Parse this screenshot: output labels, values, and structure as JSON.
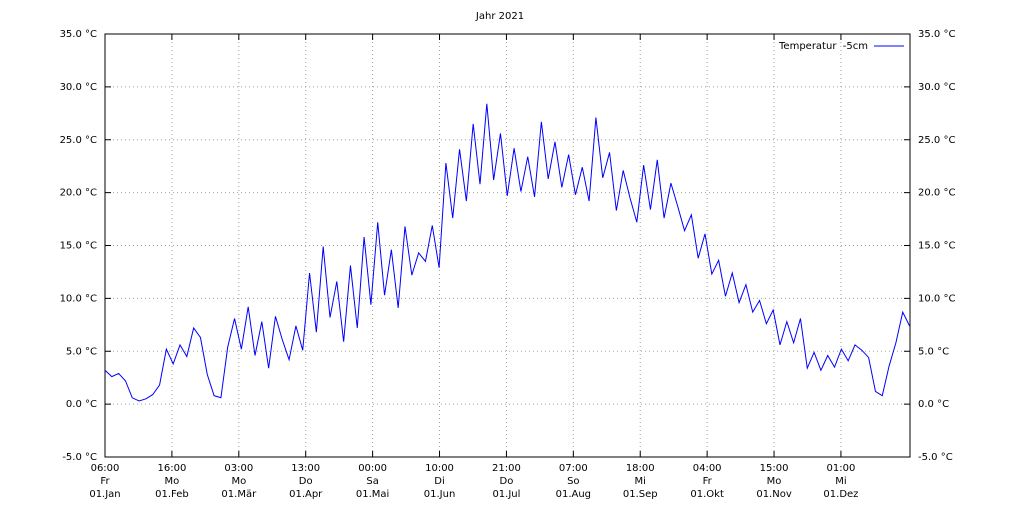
{
  "chart_data": {
    "type": "line",
    "title": "Jahr 2021",
    "xlim": [
      0,
      354.2
    ],
    "xticks": [
      {
        "value": 0,
        "label": [
          "06:00",
          "Fr",
          "01.Jan"
        ]
      },
      {
        "value": 29.44,
        "label": [
          "16:00",
          "Mo",
          "01.Feb"
        ]
      },
      {
        "value": 58.88,
        "label": [
          "03:00",
          "Mo",
          "01.Mär"
        ]
      },
      {
        "value": 88.31,
        "label": [
          "13:00",
          "Do",
          "01.Apr"
        ]
      },
      {
        "value": 117.75,
        "label": [
          "00:00",
          "Sa",
          "01.Mai"
        ]
      },
      {
        "value": 147.19,
        "label": [
          "10:00",
          "Di",
          "01.Jun"
        ]
      },
      {
        "value": 176.63,
        "label": [
          "21:00",
          "Do",
          "01.Jul"
        ]
      },
      {
        "value": 206.06,
        "label": [
          "07:00",
          "So",
          "01.Aug"
        ]
      },
      {
        "value": 235.5,
        "label": [
          "18:00",
          "Mi",
          "01.Sep"
        ]
      },
      {
        "value": 264.94,
        "label": [
          "04:00",
          "Fr",
          "01.Okt"
        ]
      },
      {
        "value": 294.38,
        "label": [
          "15:00",
          "Mo",
          "01.Nov"
        ]
      },
      {
        "value": 323.81,
        "label": [
          "01:00",
          "Mi",
          "01.Dez"
        ]
      }
    ],
    "ylim": [
      -5,
      35
    ],
    "yticks": [
      {
        "value": -5,
        "label": "-5.0 °C"
      },
      {
        "value": 0,
        "label": "0.0 °C"
      },
      {
        "value": 5,
        "label": "5.0 °C"
      },
      {
        "value": 10,
        "label": "10.0 °C"
      },
      {
        "value": 15,
        "label": "15.0 °C"
      },
      {
        "value": 20,
        "label": "20.0 °C"
      },
      {
        "value": 25,
        "label": "25.0 °C"
      },
      {
        "value": 30,
        "label": "30.0 °C"
      },
      {
        "value": 35,
        "label": "35.0 °C"
      }
    ],
    "grid": true,
    "legend": "top-right",
    "x": [
      0,
      3,
      6,
      9,
      12,
      15,
      18,
      21,
      24,
      27,
      30,
      33,
      36,
      39,
      42,
      45,
      48,
      51,
      54,
      57,
      60,
      63,
      66,
      69,
      72,
      75,
      78,
      81,
      84,
      87,
      90,
      93,
      96,
      99,
      102,
      105,
      108,
      111,
      114,
      117,
      120,
      123,
      126,
      129,
      132,
      135,
      138,
      141,
      144,
      147,
      150,
      153,
      156,
      159,
      162,
      165,
      168,
      171,
      174,
      177,
      180,
      183,
      186,
      189,
      192,
      195,
      198,
      201,
      204,
      207,
      210,
      213,
      216,
      219,
      222,
      225,
      228,
      231,
      234,
      237,
      240,
      243,
      246,
      249,
      252,
      255,
      258,
      261,
      264,
      267,
      270,
      273,
      276,
      279,
      282,
      285,
      288,
      291,
      294,
      297,
      300,
      303,
      306,
      309,
      312,
      315,
      318,
      321,
      324,
      327,
      330,
      333,
      336,
      339,
      342,
      345,
      348,
      351,
      354
    ],
    "series": [
      {
        "name": "Temperatur  -5cm",
        "color": "#0000ff",
        "values": [
          3.2,
          2.6,
          2.9,
          2.2,
          0.6,
          0.3,
          0.5,
          0.9,
          1.8,
          5.2,
          3.8,
          5.6,
          4.5,
          7.2,
          6.3,
          2.8,
          0.8,
          0.6,
          5.4,
          8.1,
          5.2,
          9.2,
          4.6,
          7.8,
          3.4,
          8.3,
          6.1,
          4.2,
          7.4,
          5.1,
          12.4,
          6.8,
          14.9,
          8.2,
          11.6,
          5.9,
          13.1,
          7.2,
          15.8,
          9.4,
          17.2,
          10.3,
          14.6,
          9.1,
          16.8,
          12.2,
          14.3,
          13.5,
          16.9,
          12.9,
          22.8,
          17.6,
          24.1,
          19.2,
          26.5,
          20.8,
          28.4,
          21.2,
          25.6,
          19.7,
          24.2,
          20.1,
          23.4,
          19.6,
          26.7,
          21.3,
          24.8,
          20.5,
          23.6,
          19.8,
          22.4,
          19.2,
          27.1,
          21.4,
          23.8,
          18.3,
          22.1,
          19.5,
          17.2,
          22.6,
          18.4,
          23.1,
          17.6,
          20.9,
          18.7,
          16.4,
          17.9,
          13.8,
          16.1,
          12.3,
          13.6,
          10.2,
          12.4,
          9.6,
          11.3,
          8.7,
          9.8,
          7.6,
          8.9,
          5.6,
          7.8,
          5.8,
          8.1,
          3.4,
          4.9,
          3.2,
          4.6,
          3.5,
          5.2,
          4.1,
          5.6,
          5.1,
          4.4,
          1.2,
          0.8,
          3.6,
          5.8,
          8.7,
          7.4
        ]
      }
    ]
  }
}
